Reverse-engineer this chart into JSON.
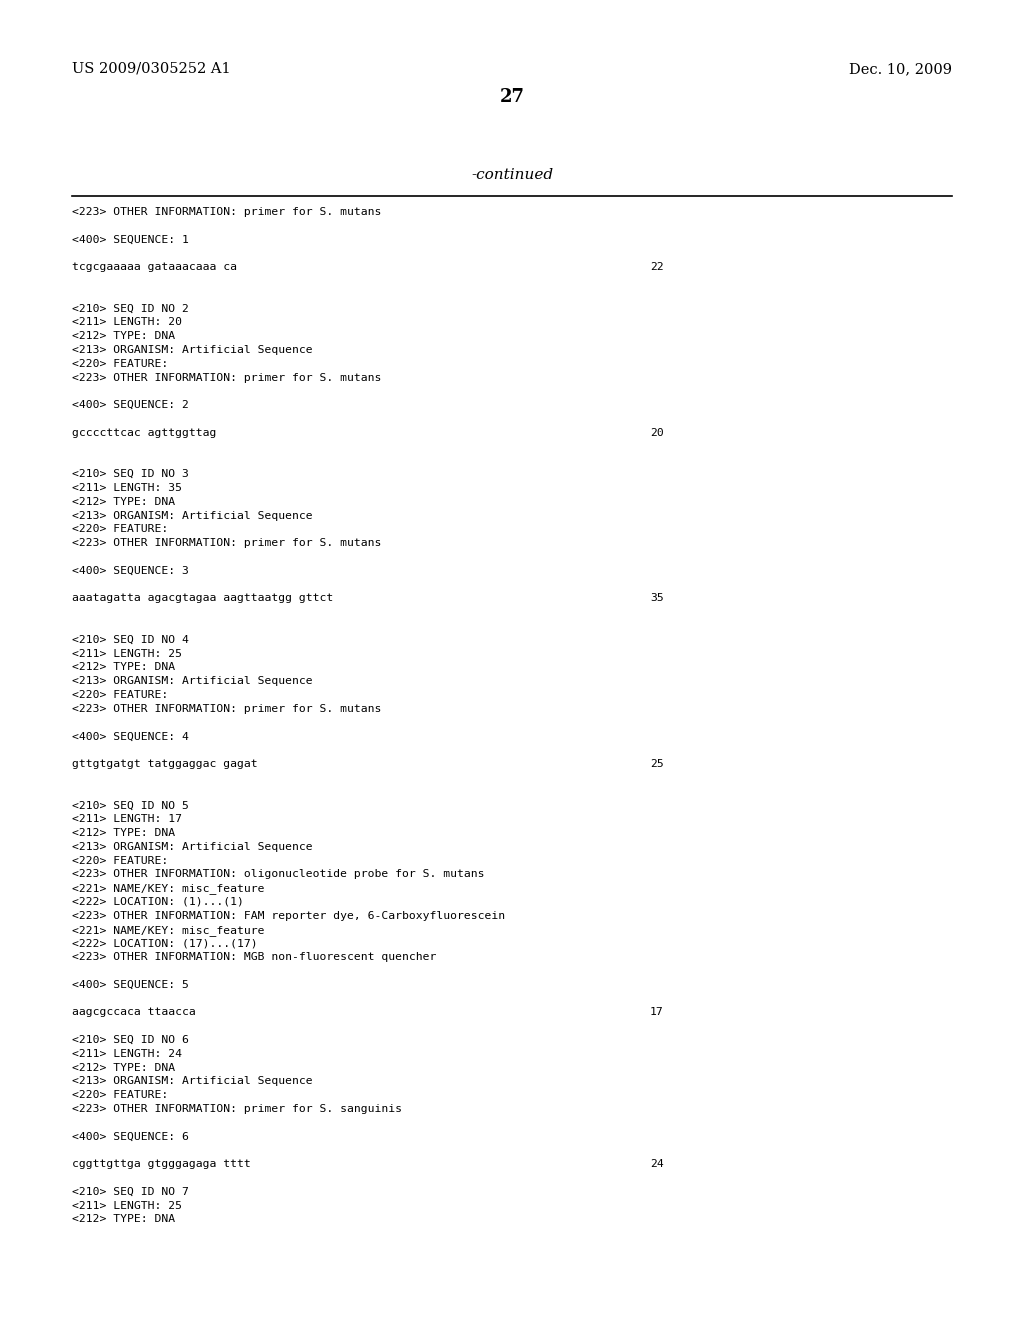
{
  "background_color": "#ffffff",
  "header_left": "US 2009/0305252 A1",
  "header_right": "Dec. 10, 2009",
  "page_number": "27",
  "continued_label": "-continued",
  "content_lines": [
    {
      "text": "<223> OTHER INFORMATION: primer for S. mutans",
      "right_num": null
    },
    {
      "text": "",
      "right_num": null
    },
    {
      "text": "<400> SEQUENCE: 1",
      "right_num": null
    },
    {
      "text": "",
      "right_num": null
    },
    {
      "text": "tcgcgaaaaa gataaacaaa ca",
      "right_num": "22"
    },
    {
      "text": "",
      "right_num": null
    },
    {
      "text": "",
      "right_num": null
    },
    {
      "text": "<210> SEQ ID NO 2",
      "right_num": null
    },
    {
      "text": "<211> LENGTH: 20",
      "right_num": null
    },
    {
      "text": "<212> TYPE: DNA",
      "right_num": null
    },
    {
      "text": "<213> ORGANISM: Artificial Sequence",
      "right_num": null
    },
    {
      "text": "<220> FEATURE:",
      "right_num": null
    },
    {
      "text": "<223> OTHER INFORMATION: primer for S. mutans",
      "right_num": null
    },
    {
      "text": "",
      "right_num": null
    },
    {
      "text": "<400> SEQUENCE: 2",
      "right_num": null
    },
    {
      "text": "",
      "right_num": null
    },
    {
      "text": "gccccttcac agttggttag",
      "right_num": "20"
    },
    {
      "text": "",
      "right_num": null
    },
    {
      "text": "",
      "right_num": null
    },
    {
      "text": "<210> SEQ ID NO 3",
      "right_num": null
    },
    {
      "text": "<211> LENGTH: 35",
      "right_num": null
    },
    {
      "text": "<212> TYPE: DNA",
      "right_num": null
    },
    {
      "text": "<213> ORGANISM: Artificial Sequence",
      "right_num": null
    },
    {
      "text": "<220> FEATURE:",
      "right_num": null
    },
    {
      "text": "<223> OTHER INFORMATION: primer for S. mutans",
      "right_num": null
    },
    {
      "text": "",
      "right_num": null
    },
    {
      "text": "<400> SEQUENCE: 3",
      "right_num": null
    },
    {
      "text": "",
      "right_num": null
    },
    {
      "text": "aaatagatta agacgtagaa aagttaatgg gttct",
      "right_num": "35"
    },
    {
      "text": "",
      "right_num": null
    },
    {
      "text": "",
      "right_num": null
    },
    {
      "text": "<210> SEQ ID NO 4",
      "right_num": null
    },
    {
      "text": "<211> LENGTH: 25",
      "right_num": null
    },
    {
      "text": "<212> TYPE: DNA",
      "right_num": null
    },
    {
      "text": "<213> ORGANISM: Artificial Sequence",
      "right_num": null
    },
    {
      "text": "<220> FEATURE:",
      "right_num": null
    },
    {
      "text": "<223> OTHER INFORMATION: primer for S. mutans",
      "right_num": null
    },
    {
      "text": "",
      "right_num": null
    },
    {
      "text": "<400> SEQUENCE: 4",
      "right_num": null
    },
    {
      "text": "",
      "right_num": null
    },
    {
      "text": "gttgtgatgt tatggaggac gagat",
      "right_num": "25"
    },
    {
      "text": "",
      "right_num": null
    },
    {
      "text": "",
      "right_num": null
    },
    {
      "text": "<210> SEQ ID NO 5",
      "right_num": null
    },
    {
      "text": "<211> LENGTH: 17",
      "right_num": null
    },
    {
      "text": "<212> TYPE: DNA",
      "right_num": null
    },
    {
      "text": "<213> ORGANISM: Artificial Sequence",
      "right_num": null
    },
    {
      "text": "<220> FEATURE:",
      "right_num": null
    },
    {
      "text": "<223> OTHER INFORMATION: oligonucleotide probe for S. mutans",
      "right_num": null
    },
    {
      "text": "<221> NAME/KEY: misc_feature",
      "right_num": null
    },
    {
      "text": "<222> LOCATION: (1)...(1)",
      "right_num": null
    },
    {
      "text": "<223> OTHER INFORMATION: FAM reporter dye, 6-Carboxyfluorescein",
      "right_num": null
    },
    {
      "text": "<221> NAME/KEY: misc_feature",
      "right_num": null
    },
    {
      "text": "<222> LOCATION: (17)...(17)",
      "right_num": null
    },
    {
      "text": "<223> OTHER INFORMATION: MGB non-fluorescent quencher",
      "right_num": null
    },
    {
      "text": "",
      "right_num": null
    },
    {
      "text": "<400> SEQUENCE: 5",
      "right_num": null
    },
    {
      "text": "",
      "right_num": null
    },
    {
      "text": "aagcgccaca ttaacca",
      "right_num": "17"
    },
    {
      "text": "",
      "right_num": null
    },
    {
      "text": "<210> SEQ ID NO 6",
      "right_num": null
    },
    {
      "text": "<211> LENGTH: 24",
      "right_num": null
    },
    {
      "text": "<212> TYPE: DNA",
      "right_num": null
    },
    {
      "text": "<213> ORGANISM: Artificial Sequence",
      "right_num": null
    },
    {
      "text": "<220> FEATURE:",
      "right_num": null
    },
    {
      "text": "<223> OTHER INFORMATION: primer for S. sanguinis",
      "right_num": null
    },
    {
      "text": "",
      "right_num": null
    },
    {
      "text": "<400> SEQUENCE: 6",
      "right_num": null
    },
    {
      "text": "",
      "right_num": null
    },
    {
      "text": "cggttgttga gtgggagaga tttt",
      "right_num": "24"
    },
    {
      "text": "",
      "right_num": null
    },
    {
      "text": "<210> SEQ ID NO 7",
      "right_num": null
    },
    {
      "text": "<211> LENGTH: 25",
      "right_num": null
    },
    {
      "text": "<212> TYPE: DNA",
      "right_num": null
    }
  ]
}
